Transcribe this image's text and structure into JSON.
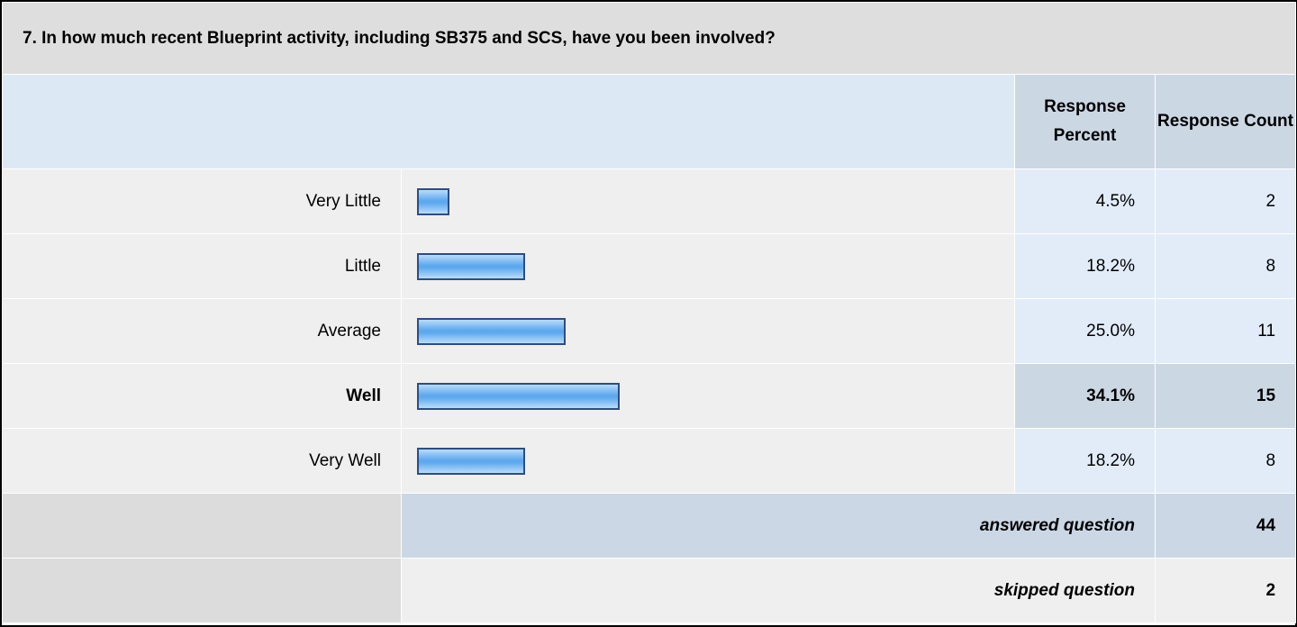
{
  "question": "7. In how much recent Blueprint activity, including SB375 and SCS, have you been involved?",
  "header": {
    "percent": "Response Percent",
    "count": "Response Count"
  },
  "rows": [
    {
      "label": "Very Little",
      "percent": 4.5,
      "percent_label": "4.5%",
      "count": 2
    },
    {
      "label": "Little",
      "percent": 18.2,
      "percent_label": "18.2%",
      "count": 8
    },
    {
      "label": "Average",
      "percent": 25.0,
      "percent_label": "25.0%",
      "count": 11
    },
    {
      "label": "Well",
      "percent": 34.1,
      "percent_label": "34.1%",
      "count": 15,
      "bold": true
    },
    {
      "label": "Very Well",
      "percent": 18.2,
      "percent_label": "18.2%",
      "count": 8
    }
  ],
  "answered": {
    "label": "answered question",
    "count": 44
  },
  "skipped": {
    "label": "skipped question",
    "count": 2
  }
}
